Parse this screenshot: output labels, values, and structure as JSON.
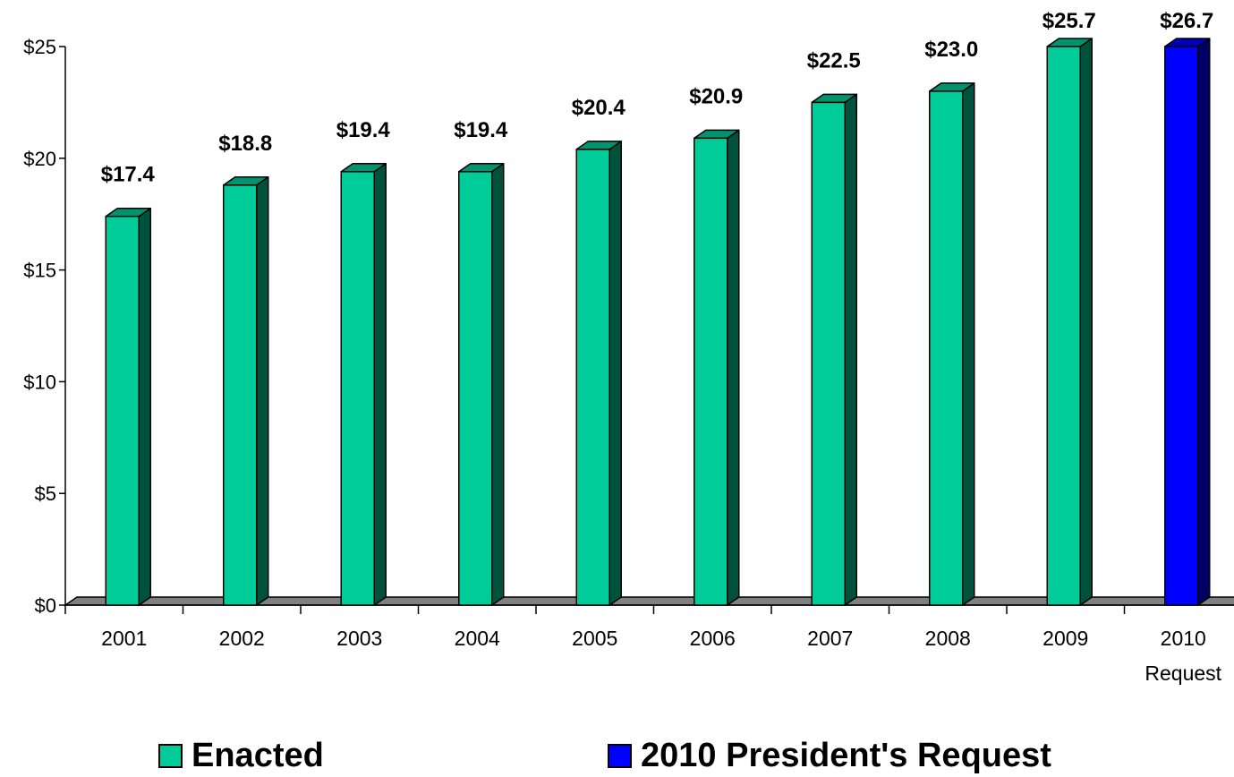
{
  "chart_data": {
    "type": "bar",
    "categories": [
      "2001",
      "2002",
      "2003",
      "2004",
      "2005",
      "2006",
      "2007",
      "2008",
      "2009",
      "2010"
    ],
    "category_sublabels": [
      "",
      "",
      "",
      "",
      "",
      "",
      "",
      "",
      "",
      "Request"
    ],
    "series": [
      {
        "name": "Enacted",
        "color": "#00CC99",
        "values": [
          17.4,
          18.8,
          19.4,
          19.4,
          20.4,
          20.9,
          22.5,
          23.0,
          25.7,
          null
        ]
      },
      {
        "name": "2010 President's Request",
        "color": "#0000FF",
        "values": [
          null,
          null,
          null,
          null,
          null,
          null,
          null,
          null,
          null,
          26.7
        ]
      }
    ],
    "data_labels": [
      "$17.4",
      "$18.8",
      "$19.4",
      "$19.4",
      "$20.4",
      "$20.9",
      "$22.5",
      "$23.0",
      "$25.7",
      "$26.7"
    ],
    "y_ticks": [
      "$0",
      "$5",
      "$10",
      "$15",
      "$20",
      "$25"
    ],
    "ylim": [
      0,
      25
    ],
    "grid": false,
    "legend_position": "bottom",
    "title": "",
    "xlabel": "",
    "ylabel": ""
  },
  "legend": [
    {
      "label": "Enacted",
      "color": "#00CC99"
    },
    {
      "label": "2010 President's Request",
      "color": "#0000FF"
    }
  ]
}
